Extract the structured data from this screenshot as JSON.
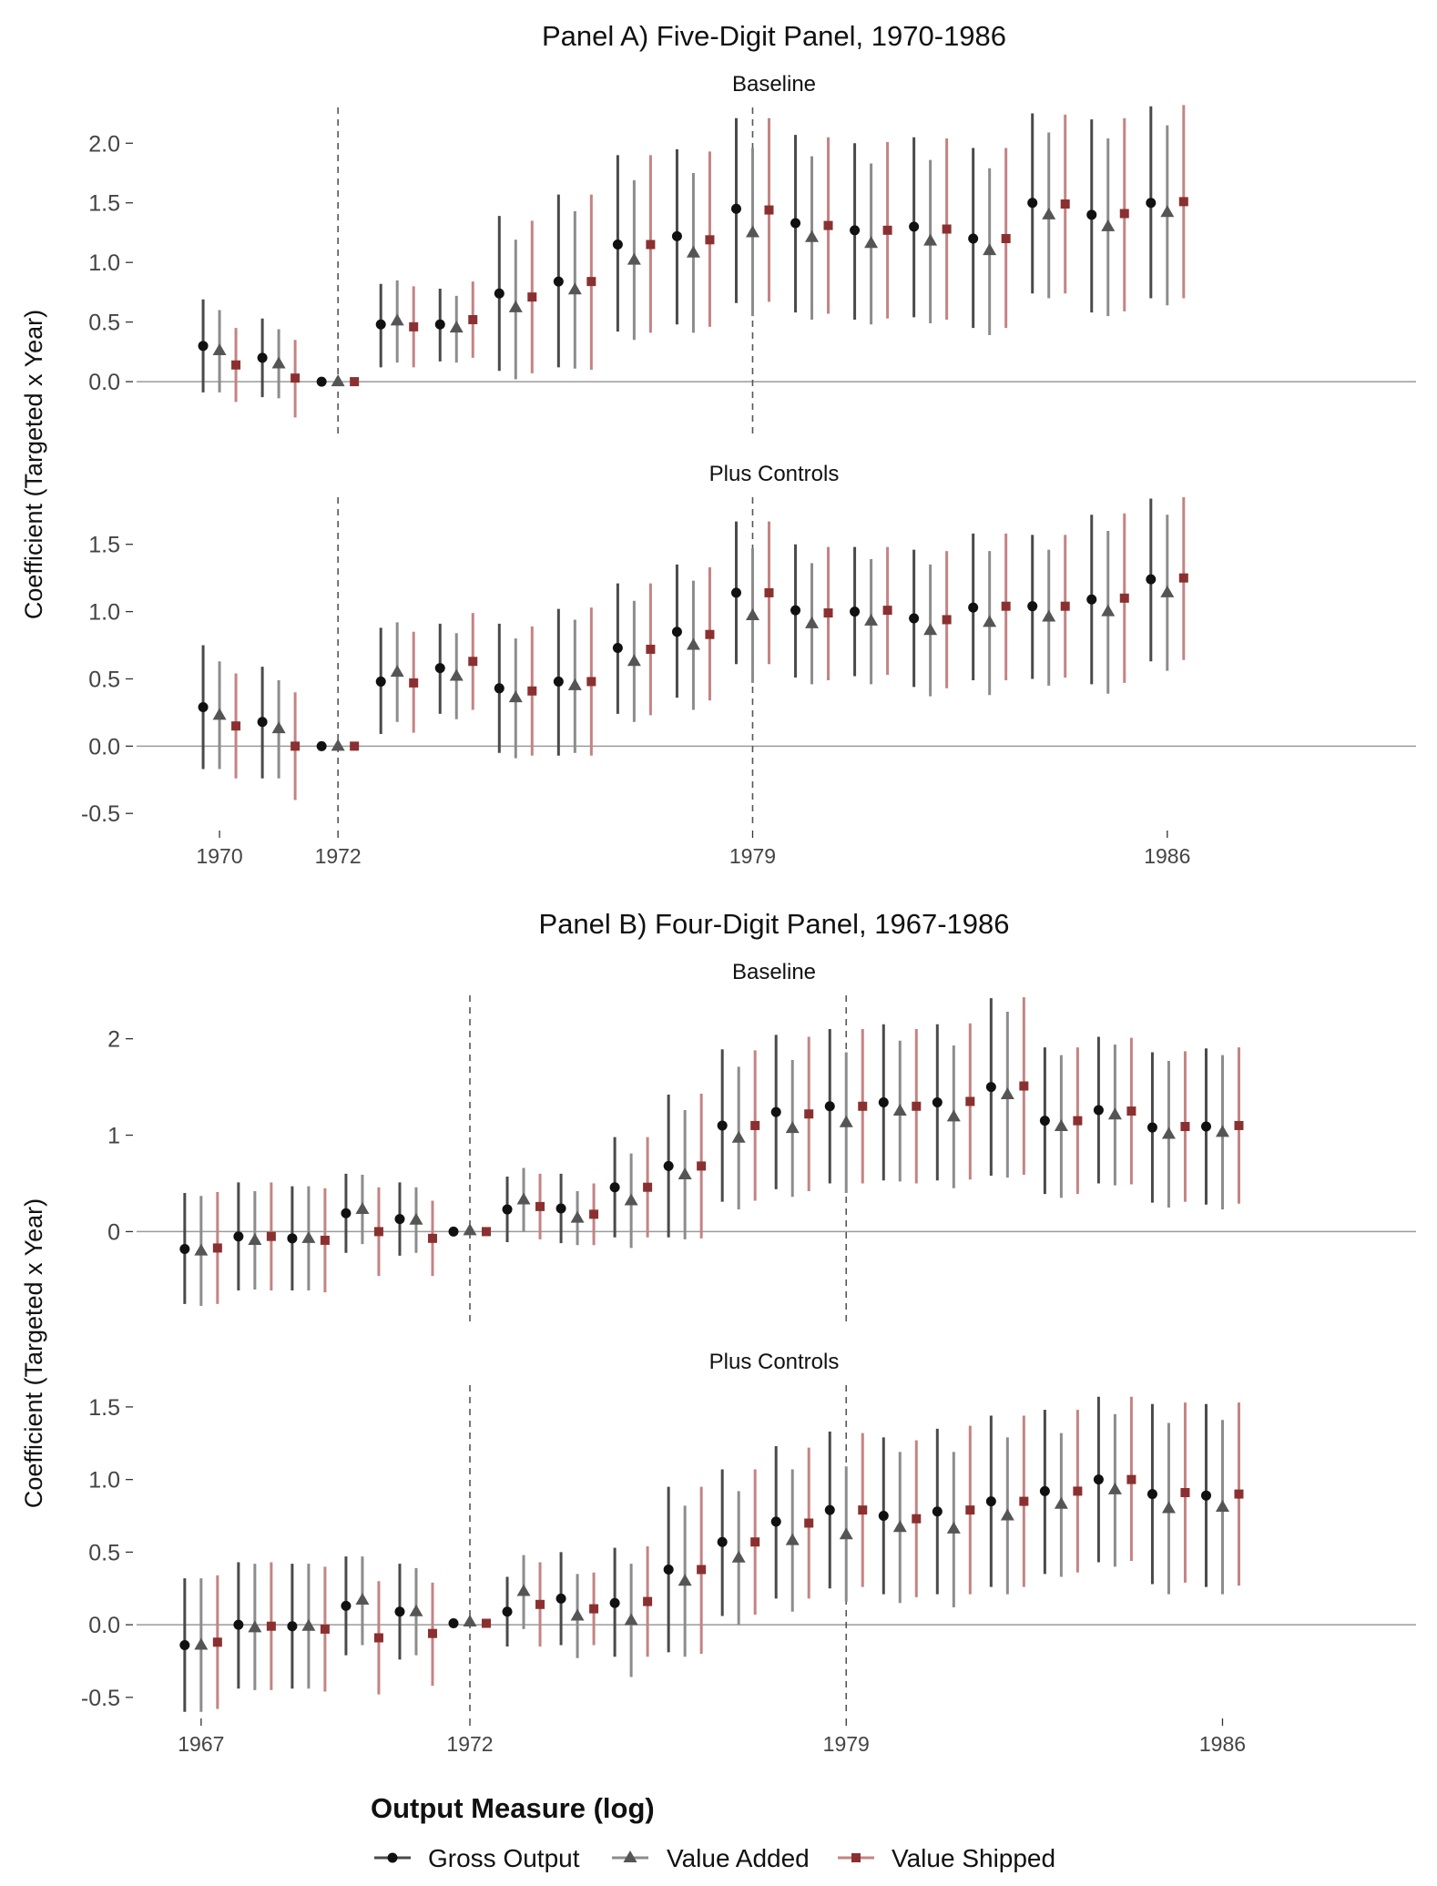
{
  "legend": {
    "title": "Output Measure (log)",
    "items": [
      {
        "name": "Gross Output",
        "color": "#111111",
        "shape": "circle"
      },
      {
        "name": "Value Added",
        "color": "#555555",
        "shape": "triangle"
      },
      {
        "name": "Value Shipped",
        "color": "#8b3030",
        "shape": "square"
      }
    ]
  },
  "colors": {
    "gross": "#111111",
    "added": "#555555",
    "shipped": "#8b3030",
    "gross_ci": "#4a4a4a",
    "added_ci": "#8c8c8c",
    "shipped_ci": "#c48383"
  },
  "chart_data": [
    {
      "type": "scatter",
      "panel": "A",
      "title": "Panel A) Five-Digit Panel, 1970-1986",
      "subtitle": "Baseline",
      "ylabel": "Coefficient (Targeted x Year)",
      "ylim": [
        -0.45,
        2.3
      ],
      "yticks": [
        0.0,
        0.5,
        1.0,
        1.5,
        2.0
      ],
      "ytick_labels": [
        "0.0",
        "0.5",
        "1.0",
        "1.5",
        "2.0"
      ],
      "x": [
        1970,
        1971,
        1972,
        1973,
        1974,
        1975,
        1976,
        1977,
        1978,
        1979,
        1980,
        1981,
        1982,
        1983,
        1984,
        1985,
        1986
      ],
      "xlim": [
        1968.6,
        1990.2
      ],
      "vlines": [
        1972,
        1979
      ],
      "series": [
        {
          "name": "Gross Output",
          "values": [
            0.3,
            0.2,
            0.0,
            0.48,
            0.48,
            0.74,
            0.84,
            1.15,
            1.22,
            1.45,
            1.33,
            1.27,
            1.3,
            1.2,
            1.5,
            1.4,
            1.5
          ],
          "lower": [
            -0.09,
            -0.13,
            0.0,
            0.12,
            0.17,
            0.09,
            0.12,
            0.42,
            0.48,
            0.66,
            0.58,
            0.52,
            0.54,
            0.45,
            0.74,
            0.58,
            0.7
          ],
          "upper": [
            0.69,
            0.53,
            0.0,
            0.82,
            0.78,
            1.39,
            1.57,
            1.9,
            1.95,
            2.21,
            2.07,
            2.0,
            2.05,
            1.96,
            2.25,
            2.2,
            2.31
          ]
        },
        {
          "name": "Value Added",
          "values": [
            0.26,
            0.15,
            0.0,
            0.51,
            0.45,
            0.62,
            0.77,
            1.02,
            1.08,
            1.25,
            1.21,
            1.16,
            1.18,
            1.1,
            1.4,
            1.3,
            1.42
          ],
          "lower": [
            -0.09,
            -0.14,
            0.0,
            0.16,
            0.16,
            0.02,
            0.11,
            0.35,
            0.41,
            0.55,
            0.52,
            0.48,
            0.49,
            0.39,
            0.7,
            0.55,
            0.64
          ],
          "upper": [
            0.6,
            0.44,
            0.0,
            0.85,
            0.72,
            1.19,
            1.43,
            1.69,
            1.75,
            1.96,
            1.89,
            1.83,
            1.86,
            1.79,
            2.09,
            2.04,
            2.15
          ]
        },
        {
          "name": "Value Shipped",
          "values": [
            0.14,
            0.03,
            0.0,
            0.46,
            0.52,
            0.71,
            0.84,
            1.15,
            1.19,
            1.44,
            1.31,
            1.27,
            1.28,
            1.2,
            1.49,
            1.41,
            1.51
          ],
          "lower": [
            -0.17,
            -0.3,
            0.0,
            0.12,
            0.2,
            0.07,
            0.1,
            0.41,
            0.46,
            0.67,
            0.57,
            0.53,
            0.52,
            0.45,
            0.74,
            0.59,
            0.7
          ],
          "upper": [
            0.45,
            0.35,
            0.0,
            0.8,
            0.84,
            1.35,
            1.57,
            1.9,
            1.93,
            2.21,
            2.05,
            2.01,
            2.04,
            1.96,
            2.24,
            2.21,
            2.32
          ]
        }
      ]
    },
    {
      "type": "scatter",
      "panel": "A",
      "subtitle": "Plus Controls",
      "ylabel": "Coefficient (Targeted x Year)",
      "ylim": [
        -0.6,
        1.85
      ],
      "yticks": [
        -0.5,
        0.0,
        0.5,
        1.0,
        1.5
      ],
      "ytick_labels": [
        "-0.5",
        "0.0",
        "0.5",
        "1.0",
        "1.5"
      ],
      "x": [
        1970,
        1971,
        1972,
        1973,
        1974,
        1975,
        1976,
        1977,
        1978,
        1979,
        1980,
        1981,
        1982,
        1983,
        1984,
        1985,
        1986
      ],
      "xlim": [
        1968.6,
        1990.2
      ],
      "vlines": [
        1972,
        1979
      ],
      "xticks": [
        1970,
        1972,
        1979,
        1986
      ],
      "xtick_labels": [
        "1970",
        "1972",
        "1979",
        "1986"
      ],
      "series": [
        {
          "name": "Gross Output",
          "values": [
            0.29,
            0.18,
            0.0,
            0.48,
            0.58,
            0.43,
            0.48,
            0.73,
            0.85,
            1.14,
            1.01,
            1.0,
            0.95,
            1.03,
            1.04,
            1.09,
            1.24
          ],
          "lower": [
            -0.17,
            -0.24,
            0.0,
            0.09,
            0.24,
            -0.05,
            -0.07,
            0.24,
            0.36,
            0.61,
            0.51,
            0.52,
            0.44,
            0.49,
            0.5,
            0.46,
            0.63
          ],
          "upper": [
            0.75,
            0.59,
            0.0,
            0.88,
            0.91,
            0.91,
            1.02,
            1.21,
            1.35,
            1.67,
            1.5,
            1.48,
            1.46,
            1.58,
            1.57,
            1.72,
            1.84
          ]
        },
        {
          "name": "Value Added",
          "values": [
            0.23,
            0.13,
            0.0,
            0.55,
            0.52,
            0.36,
            0.45,
            0.63,
            0.75,
            0.97,
            0.91,
            0.93,
            0.86,
            0.92,
            0.96,
            1.0,
            1.14
          ],
          "lower": [
            -0.17,
            -0.24,
            0.0,
            0.18,
            0.2,
            -0.09,
            -0.05,
            0.18,
            0.27,
            0.47,
            0.46,
            0.46,
            0.37,
            0.38,
            0.45,
            0.39,
            0.56
          ],
          "upper": [
            0.63,
            0.49,
            0.0,
            0.92,
            0.84,
            0.8,
            0.94,
            1.08,
            1.23,
            1.47,
            1.36,
            1.39,
            1.35,
            1.45,
            1.46,
            1.6,
            1.72
          ]
        },
        {
          "name": "Value Shipped",
          "values": [
            0.15,
            0.0,
            0.0,
            0.47,
            0.63,
            0.41,
            0.48,
            0.72,
            0.83,
            1.14,
            0.99,
            1.01,
            0.94,
            1.04,
            1.04,
            1.1,
            1.25
          ],
          "lower": [
            -0.24,
            -0.4,
            0.0,
            0.1,
            0.27,
            -0.07,
            -0.07,
            0.23,
            0.34,
            0.61,
            0.49,
            0.53,
            0.43,
            0.49,
            0.51,
            0.47,
            0.64
          ],
          "upper": [
            0.54,
            0.4,
            0.0,
            0.85,
            0.99,
            0.89,
            1.03,
            1.21,
            1.33,
            1.67,
            1.48,
            1.48,
            1.45,
            1.58,
            1.57,
            1.73,
            1.85
          ]
        }
      ]
    },
    {
      "type": "scatter",
      "panel": "B",
      "title": "Panel B) Four-Digit Panel, 1967-1986",
      "subtitle": "Baseline",
      "ylabel": "Coefficient (Targeted x Year)",
      "ylim": [
        -0.95,
        2.45
      ],
      "yticks": [
        0,
        1,
        2
      ],
      "ytick_labels": [
        "0",
        "1",
        "2"
      ],
      "x": [
        1967,
        1968,
        1969,
        1970,
        1971,
        1972,
        1973,
        1974,
        1975,
        1976,
        1977,
        1978,
        1979,
        1980,
        1981,
        1982,
        1983,
        1984,
        1985,
        1986
      ],
      "xlim": [
        1965.8,
        1989.6
      ],
      "vlines": [
        1972,
        1979
      ],
      "series": [
        {
          "name": "Gross Output",
          "values": [
            -0.18,
            -0.05,
            -0.07,
            0.19,
            0.13,
            0.0,
            0.23,
            0.24,
            0.46,
            0.68,
            1.1,
            1.24,
            1.3,
            1.34,
            1.34,
            1.5,
            1.15,
            1.26,
            1.08,
            1.09
          ],
          "lower": [
            -0.75,
            -0.61,
            -0.61,
            -0.22,
            -0.25,
            0.0,
            -0.11,
            -0.12,
            -0.06,
            -0.06,
            0.31,
            0.44,
            0.5,
            0.53,
            0.53,
            0.58,
            0.39,
            0.5,
            0.3,
            0.28
          ],
          "upper": [
            0.4,
            0.51,
            0.47,
            0.6,
            0.51,
            0.0,
            0.57,
            0.6,
            0.98,
            1.42,
            1.89,
            2.04,
            2.1,
            2.15,
            2.15,
            2.42,
            1.91,
            2.02,
            1.86,
            1.9
          ]
        },
        {
          "name": "Value Added",
          "values": [
            -0.2,
            -0.09,
            -0.07,
            0.23,
            0.12,
            0.01,
            0.33,
            0.14,
            0.32,
            0.59,
            0.97,
            1.07,
            1.13,
            1.25,
            1.19,
            1.42,
            1.09,
            1.21,
            1.01,
            1.03
          ],
          "lower": [
            -0.77,
            -0.6,
            -0.61,
            -0.13,
            -0.22,
            0.01,
            0.0,
            -0.14,
            -0.17,
            -0.08,
            0.23,
            0.36,
            0.4,
            0.52,
            0.45,
            0.56,
            0.35,
            0.48,
            0.25,
            0.23
          ],
          "upper": [
            0.37,
            0.42,
            0.47,
            0.59,
            0.46,
            0.01,
            0.66,
            0.42,
            0.81,
            1.26,
            1.71,
            1.78,
            1.86,
            1.98,
            1.93,
            2.28,
            1.83,
            1.94,
            1.77,
            1.83
          ]
        },
        {
          "name": "Value Shipped",
          "values": [
            -0.17,
            -0.05,
            -0.09,
            0.0,
            -0.07,
            0.0,
            0.26,
            0.18,
            0.46,
            0.68,
            1.1,
            1.22,
            1.3,
            1.3,
            1.35,
            1.51,
            1.15,
            1.25,
            1.09,
            1.1
          ],
          "lower": [
            -0.75,
            -0.61,
            -0.63,
            -0.46,
            -0.46,
            0.0,
            -0.08,
            -0.14,
            -0.06,
            -0.07,
            0.32,
            0.42,
            0.5,
            0.5,
            0.54,
            0.59,
            0.39,
            0.49,
            0.31,
            0.29
          ],
          "upper": [
            0.41,
            0.51,
            0.45,
            0.46,
            0.32,
            0.0,
            0.6,
            0.5,
            0.98,
            1.43,
            1.88,
            2.02,
            2.1,
            2.1,
            2.16,
            2.43,
            1.91,
            2.01,
            1.87,
            1.91
          ]
        }
      ]
    },
    {
      "type": "scatter",
      "panel": "B",
      "subtitle": "Plus Controls",
      "ylabel": "Coefficient (Targeted x Year)",
      "ylim": [
        -0.62,
        1.65
      ],
      "yticks": [
        -0.5,
        0.0,
        0.5,
        1.0,
        1.5
      ],
      "ytick_labels": [
        "-0.5",
        "0.0",
        "0.5",
        "1.0",
        "1.5"
      ],
      "x": [
        1967,
        1968,
        1969,
        1970,
        1971,
        1972,
        1973,
        1974,
        1975,
        1976,
        1977,
        1978,
        1979,
        1980,
        1981,
        1982,
        1983,
        1984,
        1985,
        1986
      ],
      "xlim": [
        1965.8,
        1989.6
      ],
      "vlines": [
        1972,
        1979
      ],
      "xticks": [
        1967,
        1972,
        1979,
        1986
      ],
      "xtick_labels": [
        "1967",
        "1972",
        "1979",
        "1986"
      ],
      "series": [
        {
          "name": "Gross Output",
          "values": [
            -0.14,
            0.0,
            -0.01,
            0.13,
            0.09,
            0.01,
            0.09,
            0.18,
            0.15,
            0.38,
            0.57,
            0.71,
            0.79,
            0.75,
            0.78,
            0.85,
            0.92,
            1.0,
            0.9,
            0.89
          ],
          "lower": [
            -0.6,
            -0.44,
            -0.44,
            -0.21,
            -0.24,
            0.01,
            -0.15,
            -0.14,
            -0.22,
            -0.19,
            0.06,
            0.18,
            0.25,
            0.21,
            0.21,
            0.26,
            0.35,
            0.43,
            0.28,
            0.26
          ],
          "upper": [
            0.32,
            0.43,
            0.42,
            0.47,
            0.42,
            0.01,
            0.33,
            0.5,
            0.53,
            0.95,
            1.07,
            1.23,
            1.33,
            1.29,
            1.35,
            1.44,
            1.48,
            1.57,
            1.52,
            1.52
          ]
        },
        {
          "name": "Value Added",
          "values": [
            -0.14,
            -0.02,
            -0.01,
            0.17,
            0.09,
            0.02,
            0.23,
            0.06,
            0.03,
            0.3,
            0.46,
            0.58,
            0.62,
            0.67,
            0.66,
            0.75,
            0.83,
            0.93,
            0.8,
            0.81
          ],
          "lower": [
            -0.6,
            -0.45,
            -0.44,
            -0.14,
            -0.21,
            0.02,
            -0.03,
            -0.23,
            -0.36,
            -0.22,
            0.0,
            0.09,
            0.16,
            0.15,
            0.12,
            0.21,
            0.33,
            0.4,
            0.21,
            0.21
          ],
          "upper": [
            0.32,
            0.42,
            0.42,
            0.47,
            0.39,
            0.02,
            0.48,
            0.35,
            0.42,
            0.82,
            0.92,
            1.07,
            1.09,
            1.19,
            1.19,
            1.29,
            1.32,
            1.45,
            1.39,
            1.41
          ]
        },
        {
          "name": "Value Shipped",
          "values": [
            -0.12,
            -0.01,
            -0.03,
            -0.09,
            -0.06,
            0.01,
            0.14,
            0.11,
            0.16,
            0.38,
            0.57,
            0.7,
            0.79,
            0.73,
            0.79,
            0.85,
            0.92,
            1.0,
            0.91,
            0.9
          ],
          "lower": [
            -0.58,
            -0.45,
            -0.46,
            -0.48,
            -0.42,
            0.01,
            -0.15,
            -0.14,
            -0.22,
            -0.2,
            0.07,
            0.18,
            0.26,
            0.19,
            0.21,
            0.26,
            0.36,
            0.44,
            0.29,
            0.27
          ],
          "upper": [
            0.34,
            0.43,
            0.4,
            0.3,
            0.29,
            0.01,
            0.43,
            0.36,
            0.54,
            0.95,
            1.07,
            1.22,
            1.32,
            1.27,
            1.37,
            1.44,
            1.48,
            1.57,
            1.53,
            1.53
          ]
        }
      ]
    }
  ]
}
